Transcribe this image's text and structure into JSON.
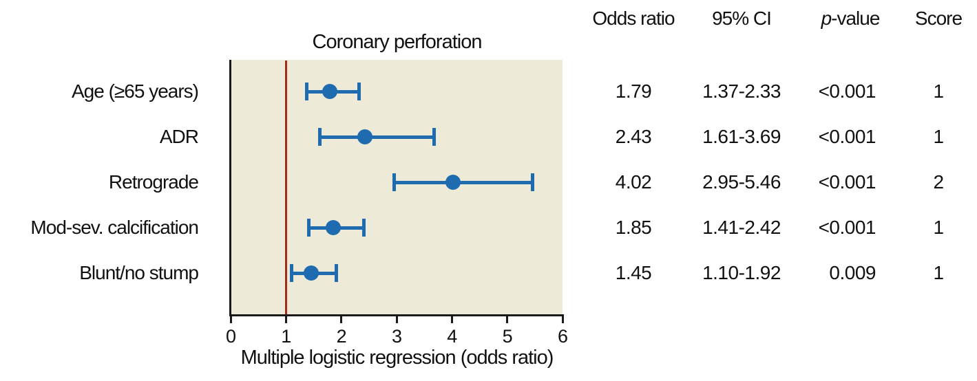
{
  "figure": {
    "title": "Coronary perforation",
    "xlabel": "Multiple logistic regression (odds ratio)"
  },
  "chart_data": {
    "type": "scatter",
    "subtype": "forest-plot-with-error-bars",
    "title": "Coronary perforation",
    "xlabel": "Multiple logistic regression (odds ratio)",
    "xlim": [
      0,
      6
    ],
    "xticks": [
      "0",
      "1",
      "2",
      "3",
      "4",
      "5",
      "6"
    ],
    "reference_line_x": 1,
    "legend": "none",
    "grid": false,
    "columns": [
      "Odds ratio",
      "95% CI",
      "p-value",
      "Score"
    ],
    "rows": [
      {
        "label": "Age (≥65 years)",
        "odds_ratio": 1.79,
        "ci_low": 1.37,
        "ci_high": 2.33,
        "odds_ratio_text": "1.79",
        "ci_text": "1.37-2.33",
        "p_value": "<0.001",
        "score": "1"
      },
      {
        "label": "ADR",
        "odds_ratio": 2.43,
        "ci_low": 1.61,
        "ci_high": 3.69,
        "odds_ratio_text": "2.43",
        "ci_text": "1.61-3.69",
        "p_value": "<0.001",
        "score": "1"
      },
      {
        "label": "Retrograde",
        "odds_ratio": 4.02,
        "ci_low": 2.95,
        "ci_high": 5.46,
        "odds_ratio_text": "4.02",
        "ci_text": "2.95-5.46",
        "p_value": "<0.001",
        "score": "2"
      },
      {
        "label": "Mod-sev. calcification",
        "odds_ratio": 1.85,
        "ci_low": 1.41,
        "ci_high": 2.42,
        "odds_ratio_text": "1.85",
        "ci_text": "1.41-2.42",
        "p_value": "<0.001",
        "score": "1"
      },
      {
        "label": "Blunt/no stump",
        "odds_ratio": 1.45,
        "ci_low": 1.1,
        "ci_high": 1.92,
        "odds_ratio_text": "1.45",
        "ci_text": "1.10-1.92",
        "p_value": "0.009",
        "score": "1"
      }
    ],
    "colors": {
      "marker": "#1f6bb0",
      "reference_line": "#a32a1a",
      "plot_background": "#eeead8",
      "axis": "#1a1a1a",
      "text": "#111111",
      "page_background": "#ffffff"
    }
  }
}
